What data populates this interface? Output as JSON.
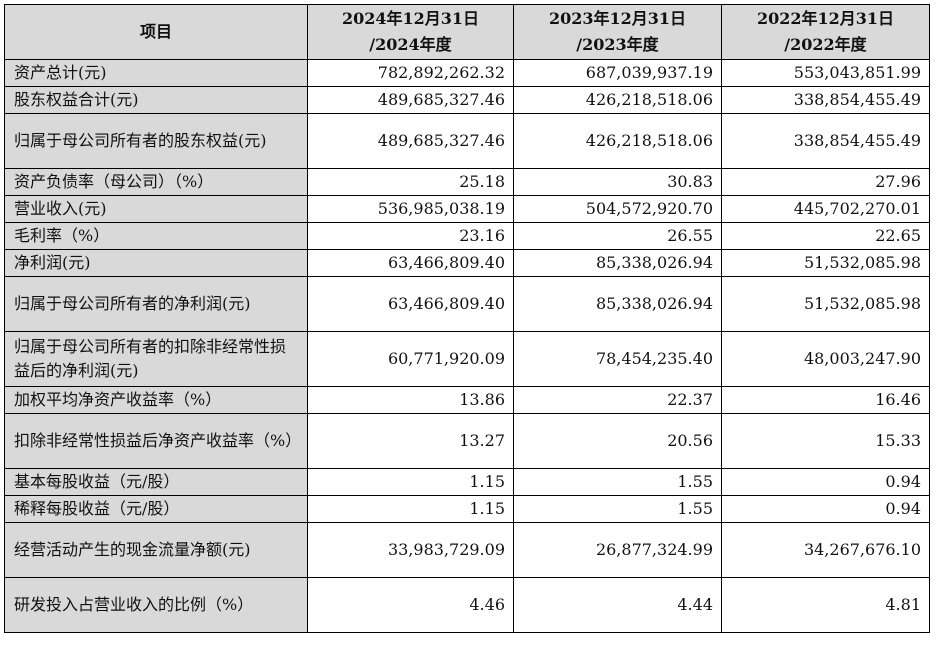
{
  "table": {
    "headers": [
      {
        "line1": "项目",
        "line2": ""
      },
      {
        "line1": "2024年12月31日",
        "line2": "/2024年度"
      },
      {
        "line1": "2023年12月31日",
        "line2": "/2023年度"
      },
      {
        "line1": "2022年12月31日",
        "line2": "/2022年度"
      }
    ],
    "rows": [
      {
        "label": "资产总计(元)",
        "values": [
          "782,892,262.32",
          "687,039,937.19",
          "553,043,851.99"
        ]
      },
      {
        "label": "股东权益合计(元)",
        "values": [
          "489,685,327.46",
          "426,218,518.06",
          "338,854,455.49"
        ]
      },
      {
        "label": "归属于母公司所有者的股东权益(元)",
        "values": [
          "489,685,327.46",
          "426,218,518.06",
          "338,854,455.49"
        ]
      },
      {
        "label": "资产负债率（母公司）（%）",
        "values": [
          "25.18",
          "30.83",
          "27.96"
        ]
      },
      {
        "label": "营业收入(元)",
        "values": [
          "536,985,038.19",
          "504,572,920.70",
          "445,702,270.01"
        ]
      },
      {
        "label": "毛利率（%）",
        "values": [
          "23.16",
          "26.55",
          "22.65"
        ]
      },
      {
        "label": "净利润(元)",
        "values": [
          "63,466,809.40",
          "85,338,026.94",
          "51,532,085.98"
        ]
      },
      {
        "label": "归属于母公司所有者的净利润(元)",
        "values": [
          "63,466,809.40",
          "85,338,026.94",
          "51,532,085.98"
        ]
      },
      {
        "label": "归属于母公司所有者的扣除非经常性损益后的净利润(元)",
        "values": [
          "60,771,920.09",
          "78,454,235.40",
          "48,003,247.90"
        ]
      },
      {
        "label": "加权平均净资产收益率（%）",
        "values": [
          "13.86",
          "22.37",
          "16.46"
        ]
      },
      {
        "label": "扣除非经常性损益后净资产收益率（%）",
        "values": [
          "13.27",
          "20.56",
          "15.33"
        ]
      },
      {
        "label": "基本每股收益（元/股）",
        "values": [
          "1.15",
          "1.55",
          "0.94"
        ]
      },
      {
        "label": "稀释每股收益（元/股）",
        "values": [
          "1.15",
          "1.55",
          "0.94"
        ]
      },
      {
        "label": "经营活动产生的现金流量净额(元)",
        "values": [
          "33,983,729.09",
          "26,877,324.99",
          "34,267,676.10"
        ]
      },
      {
        "label": "研发投入占营业收入的比例（%）",
        "values": [
          "4.46",
          "4.44",
          "4.81"
        ]
      }
    ]
  }
}
